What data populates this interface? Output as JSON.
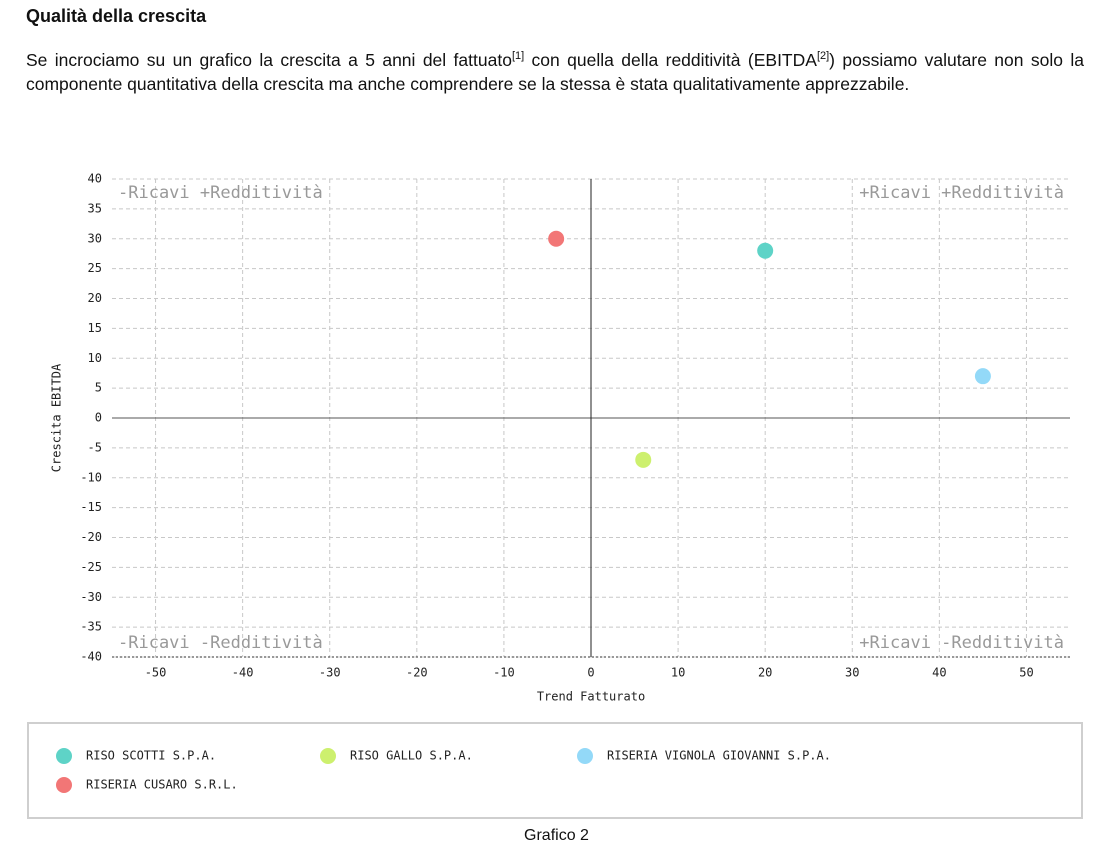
{
  "document": {
    "title": "Qualità della crescita",
    "paragraph": [
      "Se incrociamo su un grafico la crescita a 5 anni del fattuato",
      "[1]",
      " con quella della redditività (EBITDA",
      "[2]",
      ") possiamo valutare non solo la componente quantitativa della crescita ma anche comprendere se la stessa è stata qualitativamente apprezzabile."
    ],
    "caption": "Grafico 2"
  },
  "chart_data": {
    "type": "scatter",
    "x_label": "Trend Fatturato",
    "y_label": "Crescita EBITDA",
    "xlim": [
      -55,
      55
    ],
    "ylim": [
      -40,
      40
    ],
    "xticks": [
      -50,
      -40,
      -30,
      -20,
      -10,
      0,
      10,
      20,
      30,
      40,
      50
    ],
    "yticks": [
      40,
      35,
      30,
      25,
      20,
      15,
      10,
      5,
      0,
      -5,
      -10,
      -15,
      -20,
      -25,
      -30,
      -35,
      -40
    ],
    "grid": true,
    "annotations": [
      "-Ricavi +Redditività",
      "+Ricavi +Redditività",
      "-Ricavi -Redditività",
      "+Ricavi -Redditività"
    ],
    "series": [
      {
        "name": "RISO SCOTTI S.P.A.",
        "color": "#5ed3c7",
        "x": [
          20
        ],
        "values": [
          28
        ]
      },
      {
        "name": "RISO GALLO S.P.A.",
        "color": "#cdf06e",
        "x": [
          6
        ],
        "values": [
          -7
        ]
      },
      {
        "name": "RISERIA VIGNOLA GIOVANNI S.P.A.",
        "color": "#93d9f8",
        "x": [
          45
        ],
        "values": [
          7
        ]
      },
      {
        "name": "RISERIA CUSARO S.R.L.",
        "color": "#f27676",
        "x": [
          -4
        ],
        "values": [
          30
        ]
      }
    ]
  }
}
